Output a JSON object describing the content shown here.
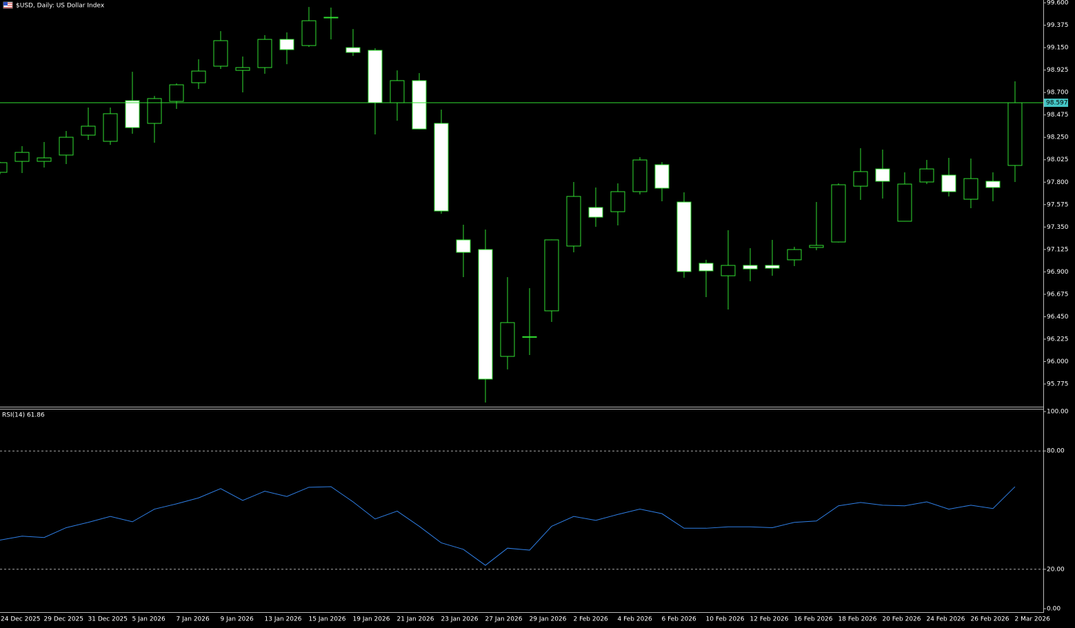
{
  "chart_data": [
    {
      "type": "candlestick",
      "title": "$USD, Daily:  US Dollar Index",
      "categories": [
        "24 Dec 2025",
        null,
        "29 Dec 2025",
        null,
        "31 Dec 2025",
        null,
        "5 Jan 2026",
        null,
        "7 Jan 2026",
        null,
        "9 Jan 2026",
        null,
        "13 Jan 2026",
        null,
        "15 Jan 2026",
        null,
        "19 Jan 2026",
        null,
        "21 Jan 2026",
        null,
        "23 Jan 2026",
        null,
        "27 Jan 2026",
        null,
        "29 Jan 2026",
        null,
        "2 Feb 2026",
        null,
        "4 Feb 2026",
        null,
        "6 Feb 2026",
        null,
        "10 Feb 2026",
        null,
        "12 Feb 2026",
        null,
        "16 Feb 2026",
        null,
        "18 Feb 2026",
        null,
        "20 Feb 2026",
        null,
        "24 Feb 2026",
        null,
        "26 Feb 2026",
        null,
        "2 Mar 2026"
      ],
      "open": [
        97.899,
        98.009,
        98.009,
        98.072,
        98.272,
        98.21,
        98.618,
        98.39,
        98.611,
        98.798,
        98.964,
        98.922,
        98.95,
        99.233,
        99.171,
        99.452,
        99.15,
        99.123,
        98.597,
        98.819,
        98.39,
        97.221,
        97.124,
        96.052,
        96.245,
        96.509,
        97.159,
        97.546,
        97.504,
        97.705,
        97.975,
        97.601,
        96.986,
        96.861,
        96.965,
        96.965,
        97.021,
        97.145,
        97.2,
        97.76,
        97.933,
        97.408,
        97.802,
        97.871,
        97.629,
        97.809,
        97.968
      ],
      "high": [
        98.003,
        98.162,
        98.203,
        98.314,
        98.549,
        98.549,
        98.908,
        98.666,
        98.791,
        99.033,
        99.316,
        99.061,
        99.275,
        99.303,
        99.558,
        99.552,
        99.337,
        99.144,
        98.922,
        98.895,
        98.528,
        97.373,
        97.325,
        96.847,
        96.737,
        97.225,
        97.802,
        97.747,
        97.788,
        98.051,
        98.002,
        97.698,
        97.021,
        97.318,
        97.138,
        97.221,
        97.152,
        97.601,
        97.788,
        98.141,
        98.127,
        97.899,
        98.023,
        98.044,
        98.037,
        97.899,
        98.812
      ],
      "low": [
        97.88,
        97.892,
        97.947,
        97.982,
        98.224,
        98.175,
        98.286,
        98.196,
        98.535,
        98.736,
        98.936,
        98.701,
        98.888,
        98.984,
        99.157,
        99.233,
        99.067,
        98.279,
        98.417,
        98.33,
        97.484,
        96.847,
        95.589,
        95.921,
        96.066,
        96.398,
        97.096,
        97.352,
        97.366,
        97.677,
        97.608,
        96.841,
        96.647,
        96.522,
        96.806,
        96.861,
        96.958,
        97.117,
        97.195,
        97.622,
        97.636,
        97.405,
        97.781,
        97.657,
        97.539,
        97.608,
        97.802
      ],
      "close": [
        97.996,
        98.099,
        98.044,
        98.251,
        98.362,
        98.487,
        98.348,
        98.639,
        98.777,
        98.915,
        99.22,
        98.95,
        99.233,
        99.13,
        99.42,
        99.455,
        99.102,
        98.597,
        98.819,
        98.334,
        97.511,
        97.096,
        95.824,
        96.391,
        96.25,
        97.221,
        97.657,
        97.449,
        97.705,
        98.023,
        97.74,
        96.903,
        96.91,
        96.965,
        96.93,
        96.937,
        97.124,
        97.166,
        97.774,
        97.906,
        97.809,
        97.781,
        97.933,
        97.705,
        97.836,
        97.747,
        98.597
      ],
      "current_price": 98.597,
      "up_color": "#000000",
      "down_color": "#ffffff",
      "line_color": "#32e032",
      "ylim": [
        95.547,
        99.628
      ],
      "yticks": [
        {
          "value": 99.6,
          "label": "99.600"
        },
        {
          "value": 99.375,
          "label": "99.375"
        },
        {
          "value": 99.15,
          "label": "99.150"
        },
        {
          "value": 98.925,
          "label": "98.925"
        },
        {
          "value": 98.7,
          "label": "98.700"
        },
        {
          "value": 98.475,
          "label": "98.475"
        },
        {
          "value": 98.25,
          "label": "98.250"
        },
        {
          "value": 98.025,
          "label": "98.025"
        },
        {
          "value": 97.8,
          "label": "97.800"
        },
        {
          "value": 97.575,
          "label": "97.575"
        },
        {
          "value": 97.35,
          "label": "97.350"
        },
        {
          "value": 97.125,
          "label": "97.125"
        },
        {
          "value": 96.9,
          "label": "96.900"
        },
        {
          "value": 96.675,
          "label": "96.675"
        },
        {
          "value": 96.45,
          "label": "96.450"
        },
        {
          "value": 96.225,
          "label": "96.225"
        },
        {
          "value": 96.0,
          "label": "96.000"
        },
        {
          "value": 95.775,
          "label": "95.775"
        }
      ]
    },
    {
      "type": "line",
      "title": "RSI(14) 61.86",
      "values": [
        34.8,
        36.8,
        36.1,
        41.1,
        43.8,
        46.8,
        44.1,
        50.5,
        53.2,
        56.2,
        60.9,
        54.9,
        59.6,
        56.9,
        61.6,
        61.9,
        54.2,
        45.5,
        49.5,
        41.8,
        33.4,
        30.1,
        22.0,
        30.7,
        29.7,
        41.8,
        46.8,
        44.8,
        47.8,
        50.5,
        48.2,
        40.8,
        40.8,
        41.5,
        41.5,
        41.1,
        43.8,
        44.5,
        52.2,
        53.9,
        52.5,
        52.2,
        54.2,
        50.5,
        52.5,
        50.8,
        61.86
      ],
      "color": "#2f7fe6",
      "ylim": [
        0,
        100
      ],
      "yticks": [
        {
          "value": 100,
          "label": "100.00"
        },
        {
          "value": 80,
          "label": "80.00"
        },
        {
          "value": 20,
          "label": "20.00"
        },
        {
          "value": 0,
          "label": "0.00"
        }
      ]
    }
  ]
}
